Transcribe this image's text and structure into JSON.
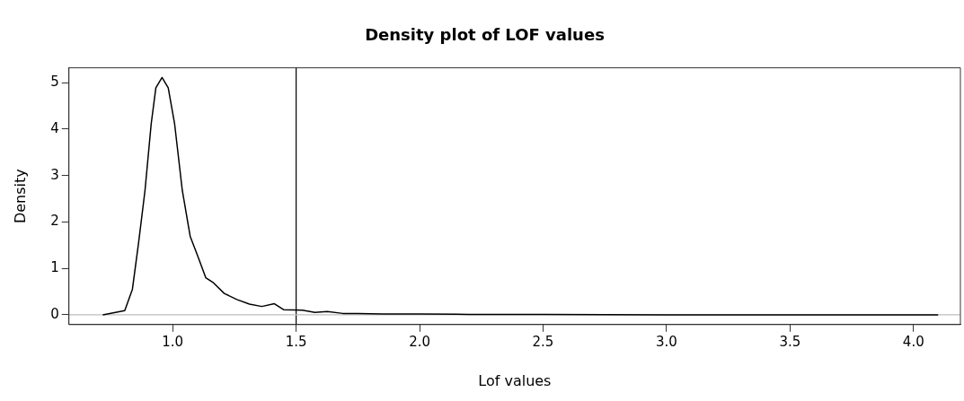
{
  "chart_data": {
    "type": "line",
    "title": "Density plot of LOF values",
    "xlabel": "Lof values",
    "ylabel": "Density",
    "x": [
      0.717,
      0.806,
      0.837,
      0.862,
      0.888,
      0.913,
      0.932,
      0.957,
      0.982,
      1.008,
      1.039,
      1.071,
      1.102,
      1.134,
      1.165,
      1.209,
      1.26,
      1.311,
      1.361,
      1.412,
      1.449,
      1.525,
      1.576,
      1.626,
      1.689,
      1.75,
      1.85,
      2.0,
      2.2,
      2.5,
      3.0,
      3.5,
      4.1
    ],
    "series": [
      {
        "color": "#000000",
        "values": [
          0,
          0.09,
          0.55,
          1.55,
          2.68,
          4.11,
          4.89,
          5.11,
          4.89,
          4.11,
          2.68,
          1.69,
          1.26,
          0.8,
          0.69,
          0.46,
          0.33,
          0.23,
          0.18,
          0.24,
          0.11,
          0.1,
          0.05,
          0.07,
          0.03,
          0.03,
          0.02,
          0.02,
          0.01,
          0.01,
          0,
          0,
          0
        ]
      }
    ],
    "xlim": [
      0.58,
      4.19
    ],
    "xticks": [
      {
        "value": 1,
        "label": "1.0"
      },
      {
        "value": 1.5,
        "label": "1.5"
      },
      {
        "value": 2,
        "label": "2.0"
      },
      {
        "value": 2.5,
        "label": "2.5"
      },
      {
        "value": 3,
        "label": "3.0"
      },
      {
        "value": 3.5,
        "label": "3.5"
      },
      {
        "value": 4,
        "label": "4.0"
      }
    ],
    "ylim": [
      -0.21,
      5.32
    ],
    "yticks": [
      0,
      1,
      2,
      3,
      4,
      5
    ],
    "ref_lines": [
      {
        "axis": "x",
        "value": 1.5,
        "color": "#000000"
      },
      {
        "axis": "y",
        "value": 0,
        "color": "#bebebe"
      }
    ],
    "grid": false,
    "legend": false,
    "marker": "none",
    "line_style": "solid"
  }
}
